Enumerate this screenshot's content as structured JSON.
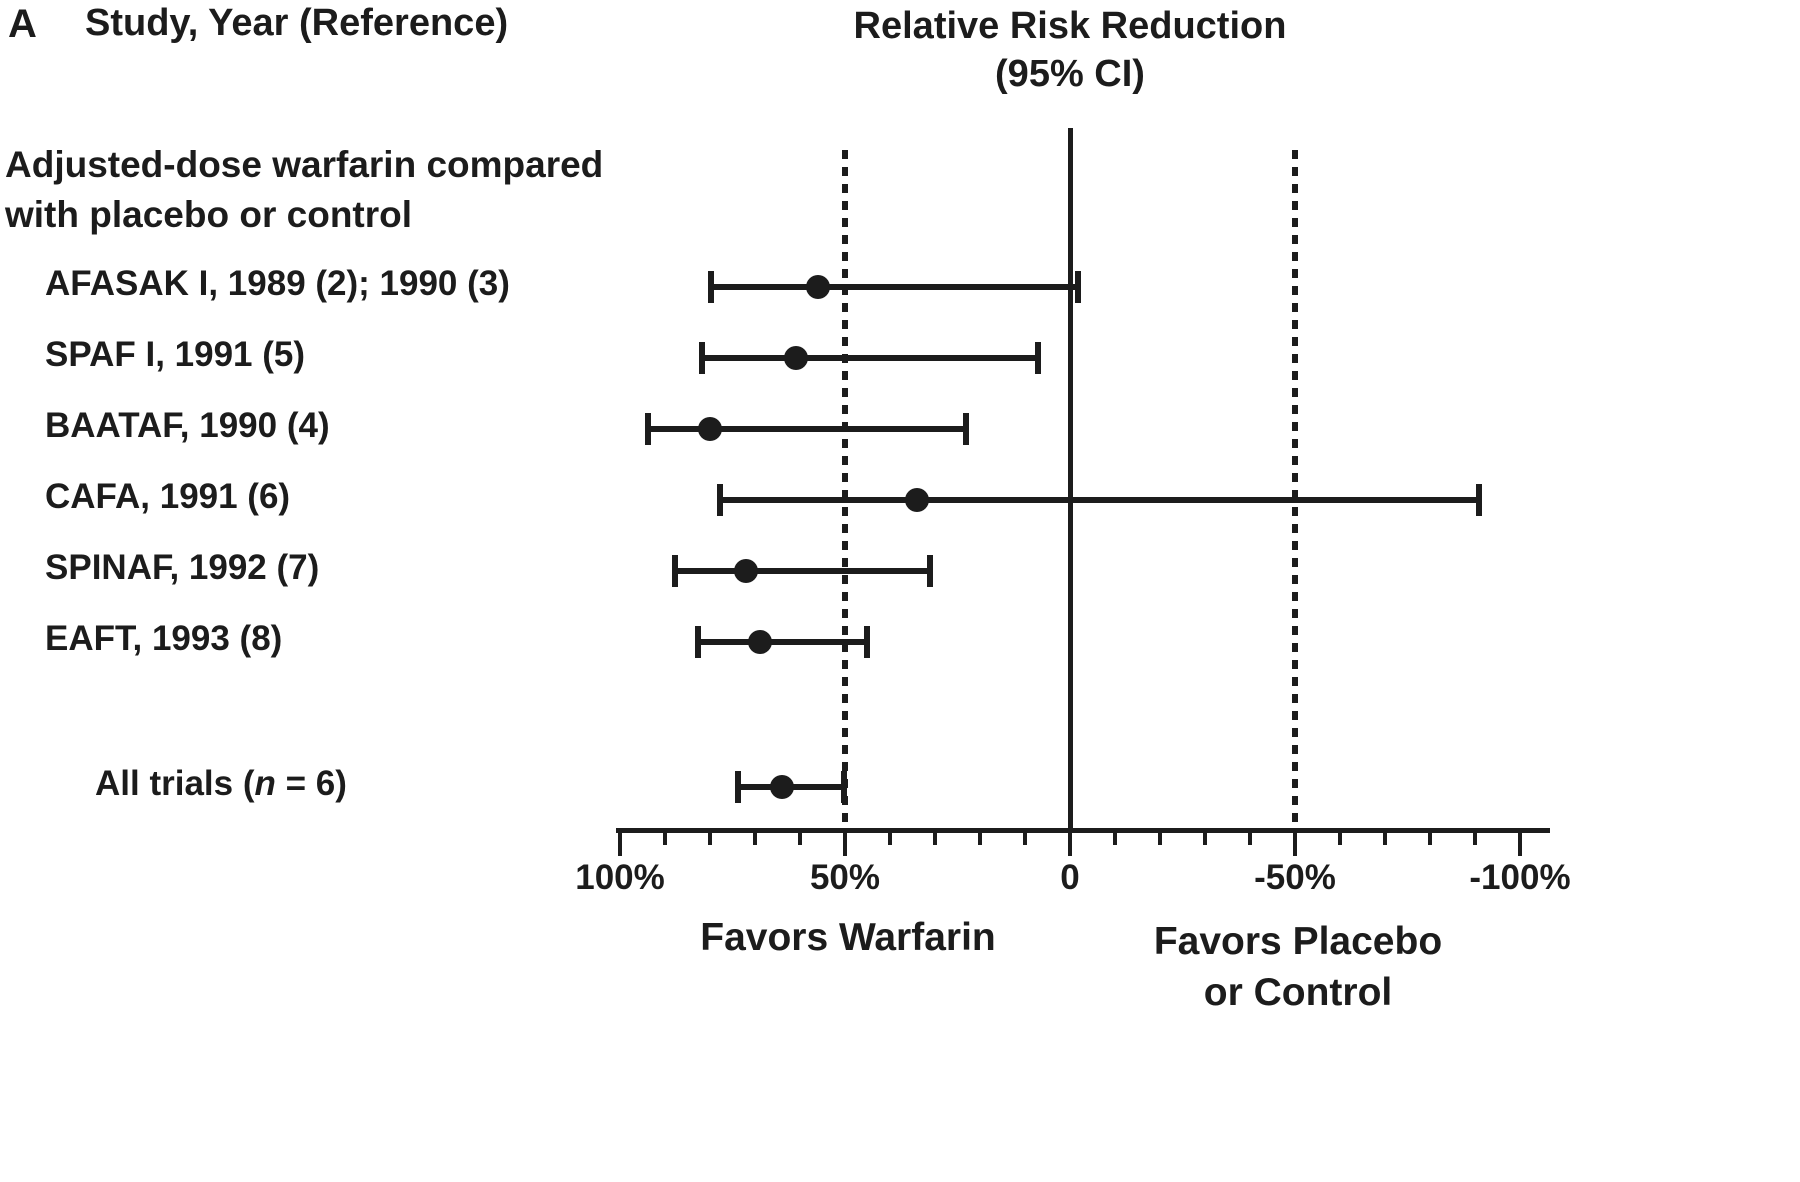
{
  "panel": {
    "label": "A"
  },
  "headers": {
    "left": "Study, Year (Reference)",
    "right_line1": "Relative Risk Reduction",
    "right_line2": "(95% CI)"
  },
  "group": {
    "line1": "Adjusted-dose warfarin compared",
    "line2": "with placebo or control"
  },
  "footer": {
    "left": "Favors Warfarin",
    "right_line1": "Favors Placebo",
    "right_line2": "or Control"
  },
  "colors": {
    "ink": "#1c1c1c",
    "background": "#ffffff"
  },
  "chart_data": {
    "type": "scatter",
    "variant": "forest-plot",
    "title": "Relative Risk Reduction (95% CI)",
    "group_label": "Adjusted-dose warfarin compared with placebo or control",
    "unit": "percent relative risk reduction",
    "studies": [
      {
        "label": "AFASAK I, 1989 (2); 1990 (3)",
        "rrr": 56,
        "ci_low": -2,
        "ci_high": 80
      },
      {
        "label": "SPAF I, 1991 (5)",
        "rrr": 61,
        "ci_low": 7,
        "ci_high": 82
      },
      {
        "label": "BAATAF, 1990 (4)",
        "rrr": 80,
        "ci_low": 23,
        "ci_high": 94
      },
      {
        "label": "CAFA, 1991 (6)",
        "rrr": 34,
        "ci_low": -91,
        "ci_high": 78
      },
      {
        "label": "SPINAF, 1992 (7)",
        "rrr": 72,
        "ci_low": 31,
        "ci_high": 88
      },
      {
        "label": "EAFT, 1993 (8)",
        "rrr": 69,
        "ci_low": 45,
        "ci_high": 83
      }
    ],
    "summary": {
      "label_prefix": "All trials (",
      "label_n": "n",
      "label_suffix": " = 6)",
      "rrr": 64,
      "ci_low": 50,
      "ci_high": 74
    },
    "x_axis": {
      "range": [
        100,
        -100
      ],
      "minor_tick_step": 10,
      "ticks": [
        {
          "label": "100%",
          "value": 100
        },
        {
          "label": "50%",
          "value": 50
        },
        {
          "label": "0",
          "value": 0
        },
        {
          "label": "-50%",
          "value": -50
        },
        {
          "label": "-100%",
          "value": -100
        }
      ]
    },
    "reference_lines": [
      {
        "value": 0,
        "style": "solid"
      },
      {
        "value": 50,
        "style": "dotted"
      },
      {
        "value": -50,
        "style": "dotted"
      }
    ],
    "legend": "none",
    "grid": "off"
  }
}
